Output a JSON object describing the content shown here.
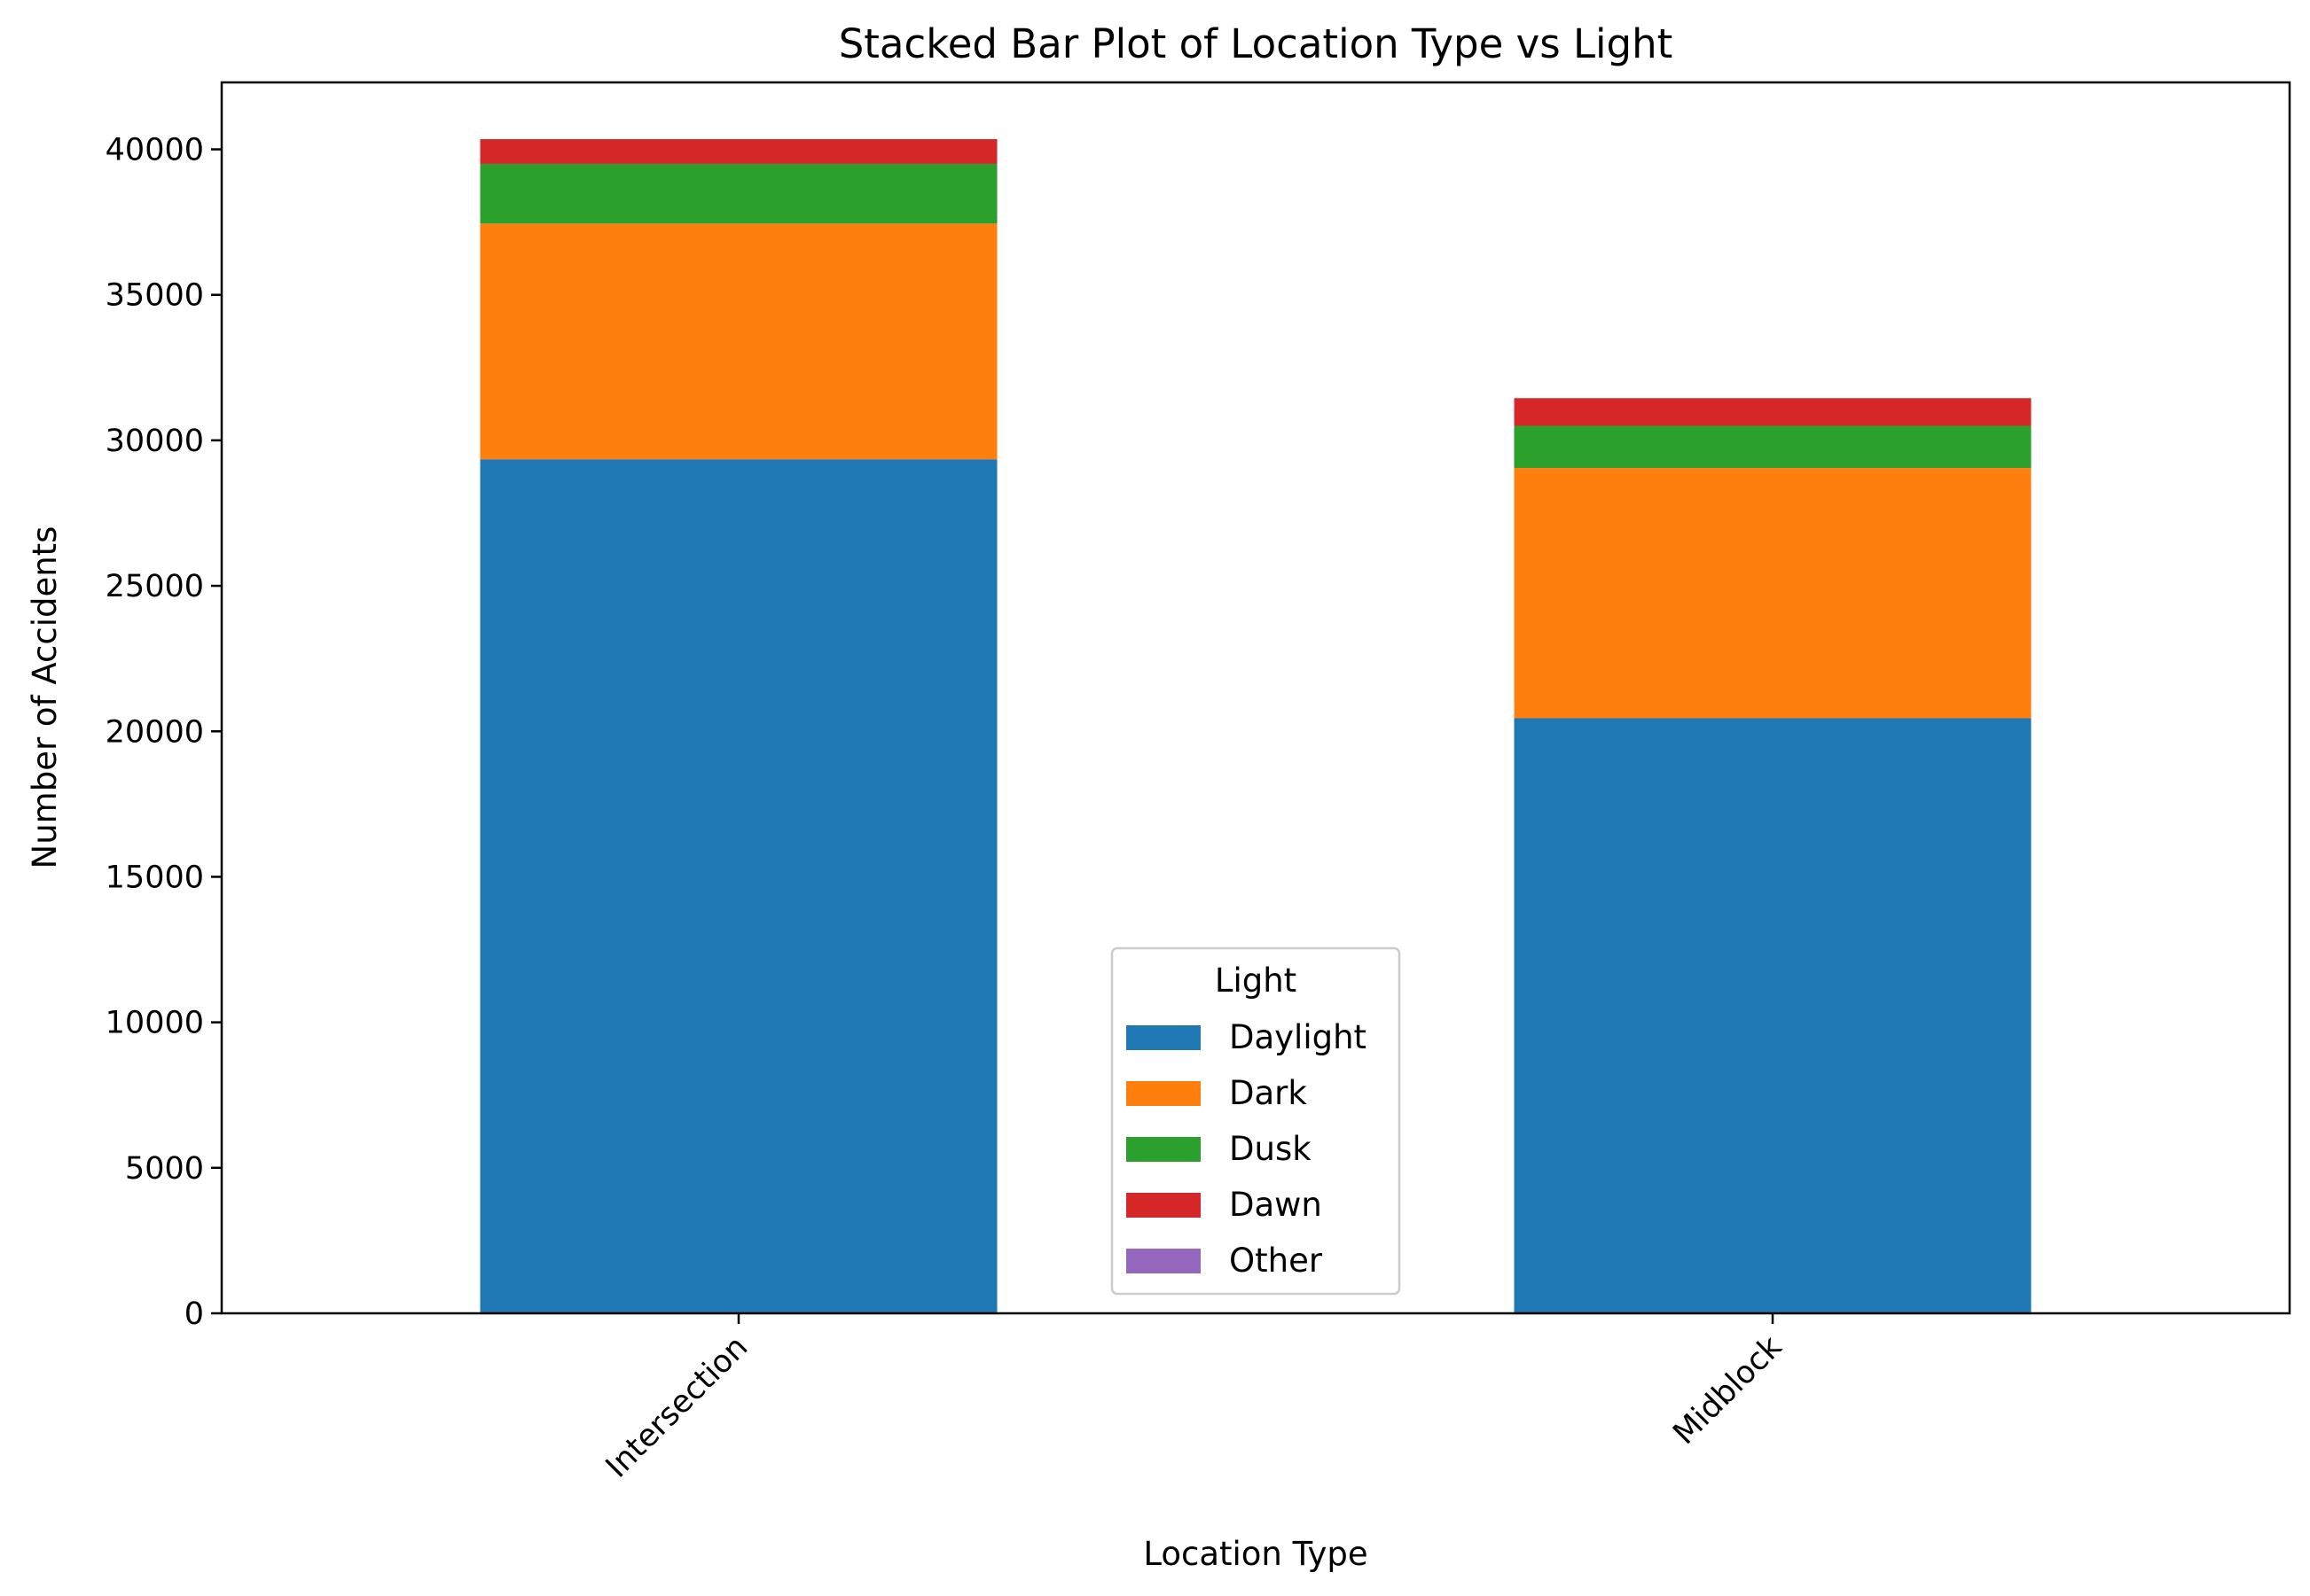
{
  "chart_data": {
    "type": "bar",
    "stacked": true,
    "title": "Stacked Bar Plot of Location Type vs Light",
    "xlabel": "Location Type",
    "ylabel": "Number of Accidents",
    "categories": [
      "Intersection",
      "Midblock"
    ],
    "ylim": [
      0,
      42300
    ],
    "yticks": [
      0,
      5000,
      10000,
      15000,
      20000,
      25000,
      30000,
      35000,
      40000
    ],
    "grid": false,
    "legend": {
      "title": "Light",
      "placement": "lower center"
    },
    "series": [
      {
        "name": "Daylight",
        "color": "#1f77b4",
        "values": [
          29350,
          20450
        ]
      },
      {
        "name": "Dark",
        "color": "#ff7f0e",
        "values": [
          8100,
          8600
        ]
      },
      {
        "name": "Dusk",
        "color": "#2ca02c",
        "values": [
          2050,
          1450
        ]
      },
      {
        "name": "Dawn",
        "color": "#d62728",
        "values": [
          850,
          950
        ]
      },
      {
        "name": "Other",
        "color": "#9467bd",
        "values": [
          0,
          0
        ]
      }
    ]
  }
}
